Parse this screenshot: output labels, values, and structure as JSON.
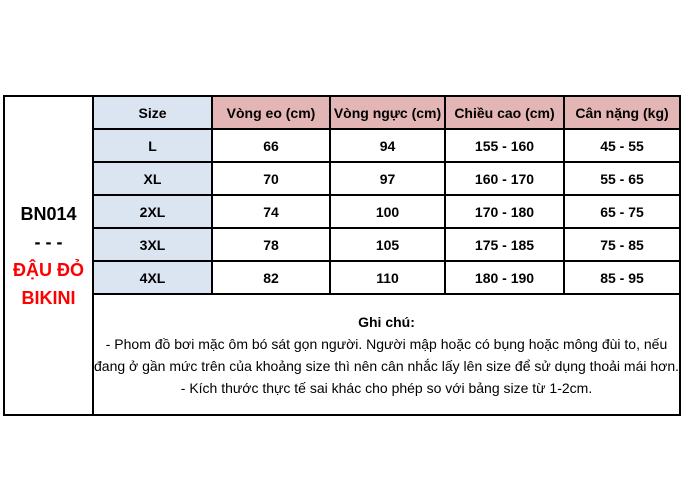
{
  "product": {
    "code": "BN014",
    "separator": "- - -",
    "name_line1": "ĐẬU ĐỎ",
    "name_line2": "BIKINI"
  },
  "size_table": {
    "headers": {
      "size": "Size",
      "waist": "Vòng eo (cm)",
      "bust": "Vòng ngực (cm)",
      "height": "Chiều cao (cm)",
      "weight": "Cân nặng (kg)"
    },
    "rows": [
      {
        "size": "L",
        "waist": "66",
        "bust": "94",
        "height": "155 - 160",
        "weight": "45 - 55"
      },
      {
        "size": "XL",
        "waist": "70",
        "bust": "97",
        "height": "160 - 170",
        "weight": "55 - 65"
      },
      {
        "size": "2XL",
        "waist": "74",
        "bust": "100",
        "height": "170 - 180",
        "weight": "65 - 75"
      },
      {
        "size": "3XL",
        "waist": "78",
        "bust": "105",
        "height": "175 - 185",
        "weight": "75 - 85"
      },
      {
        "size": "4XL",
        "waist": "82",
        "bust": "110",
        "height": "180 - 190",
        "weight": "85 - 95"
      }
    ]
  },
  "notes": {
    "title": "Ghi chú:",
    "lines": [
      "- Phom đồ bơi mặc ôm bó sát gọn người. Người mập hoặc có bụng hoặc mông đùi to, nếu đang ở gần mức trên của khoảng size thì nên cân nhắc lấy lên size để sử dụng thoải mái hơn.",
      "- Kích thước thực tế sai khác cho phép so với bảng size từ 1-2cm."
    ]
  },
  "colors": {
    "header_pink": "#e3b5b4",
    "size_blue": "#dbe5f1",
    "accent_red": "#ff0000",
    "border_black": "#000000"
  }
}
